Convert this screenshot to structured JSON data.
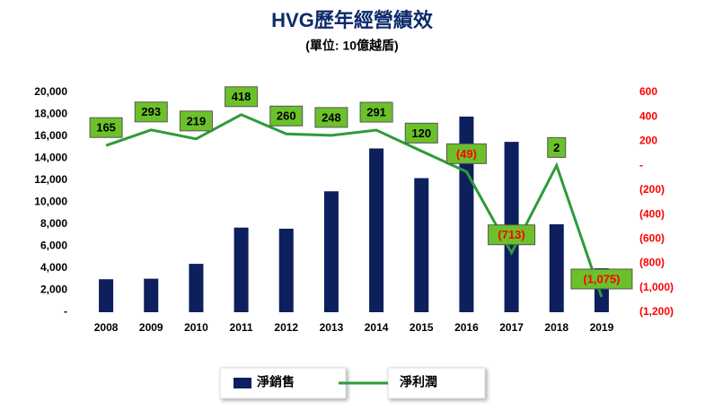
{
  "chart_data": {
    "type": "combo",
    "title": "HVG歷年經營績效",
    "subtitle": "(單位: 10億越盾)",
    "categories": [
      "2008",
      "2009",
      "2010",
      "2011",
      "2012",
      "2013",
      "2014",
      "2015",
      "2016",
      "2017",
      "2018",
      "2019"
    ],
    "series": [
      {
        "name": "淨銷售",
        "type": "bar",
        "color": "#0d1f5c",
        "values": [
          3000,
          3050,
          4400,
          7700,
          7600,
          11000,
          14900,
          12200,
          17800,
          15500,
          8000,
          4000
        ]
      },
      {
        "name": "淨利潤",
        "type": "line",
        "axis": "y2",
        "color": "#2e9b3a",
        "values": [
          165,
          293,
          219,
          418,
          260,
          248,
          291,
          120,
          -49,
          -713,
          2,
          -1075
        ],
        "value_labels": [
          "165",
          "293",
          "219",
          "418",
          "260",
          "248",
          "291",
          "120",
          "(49)",
          "(713)",
          "2",
          "(1,075)"
        ]
      }
    ],
    "ylim": [
      0,
      20000
    ],
    "yticks": [
      {
        "value": 0,
        "label": "-"
      },
      {
        "value": 2000,
        "label": "2,000"
      },
      {
        "value": 4000,
        "label": "4,000"
      },
      {
        "value": 6000,
        "label": "6,000"
      },
      {
        "value": 8000,
        "label": "8,000"
      },
      {
        "value": 10000,
        "label": "10,000"
      },
      {
        "value": 12000,
        "label": "12,000"
      },
      {
        "value": 14000,
        "label": "14,000"
      },
      {
        "value": 16000,
        "label": "16,000"
      },
      {
        "value": 18000,
        "label": "18,000"
      },
      {
        "value": 20000,
        "label": "20,000"
      }
    ],
    "y2lim": [
      -1200,
      600
    ],
    "y2ticks": [
      {
        "value": -1200,
        "label": "(1,200)"
      },
      {
        "value": -1000,
        "label": "(1,000)"
      },
      {
        "value": -800,
        "label": "(800)"
      },
      {
        "value": -600,
        "label": "(600)"
      },
      {
        "value": -400,
        "label": "(400)"
      },
      {
        "value": -200,
        "label": "(200)"
      },
      {
        "value": 0,
        "label": "-"
      },
      200,
      400,
      600
    ],
    "y2_tick_color": "#ff0000",
    "negative_label_color": "#ff0000",
    "label_box_color": "#6cc12a"
  }
}
